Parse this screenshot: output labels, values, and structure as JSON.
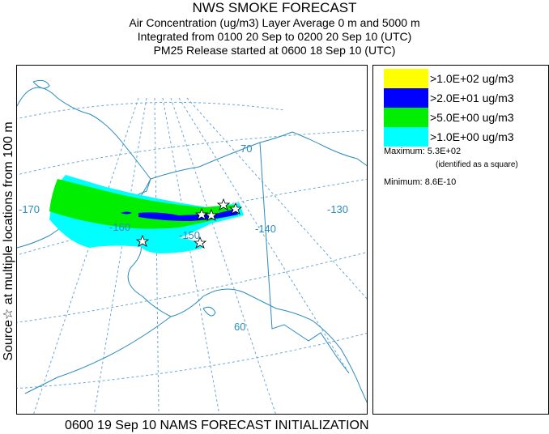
{
  "title": {
    "main": "NWS SMOKE FORECAST",
    "line2": "Air Concentration (ug/m3) Layer Average    0 m and  5000 m",
    "line3": "Integrated from 0100 20 Sep to 0200 20 Sep 10 (UTC)",
    "line4": "PM25 Release started at 0600 18 Sep 10 (UTC)"
  },
  "side_label": "Source☆ at multiple locations  from  100 m",
  "legend": {
    "items": [
      {
        "label": ">1.0E+02 ug/m3",
        "color": "#ffff00"
      },
      {
        "label": ">2.0E+01 ug/m3",
        "color": "#0000ff"
      },
      {
        "label": ">5.0E+00 ug/m3",
        "color": "#00ee00"
      },
      {
        "label": ">1.0E+00 ug/m3",
        "color": "#00ffff"
      }
    ],
    "maximum": "Maximum: 5.3E+02",
    "maximum_note": "(identified as a square)",
    "minimum": "Minimum: 8.6E-10"
  },
  "map": {
    "grid_labels": {
      "lon_170": "-170",
      "lon_160": "-160",
      "lon_150": "-150",
      "lon_140": "-140",
      "lon_130": "-130",
      "lat_70": "70",
      "lat_60": "60"
    },
    "colors": {
      "grid": "#6aa8d6",
      "coast": "#2b8bbf",
      "label": "#2b8bbf"
    }
  },
  "footer": "0600 19 Sep 10 NAMS FORECAST INITIALIZATION"
}
